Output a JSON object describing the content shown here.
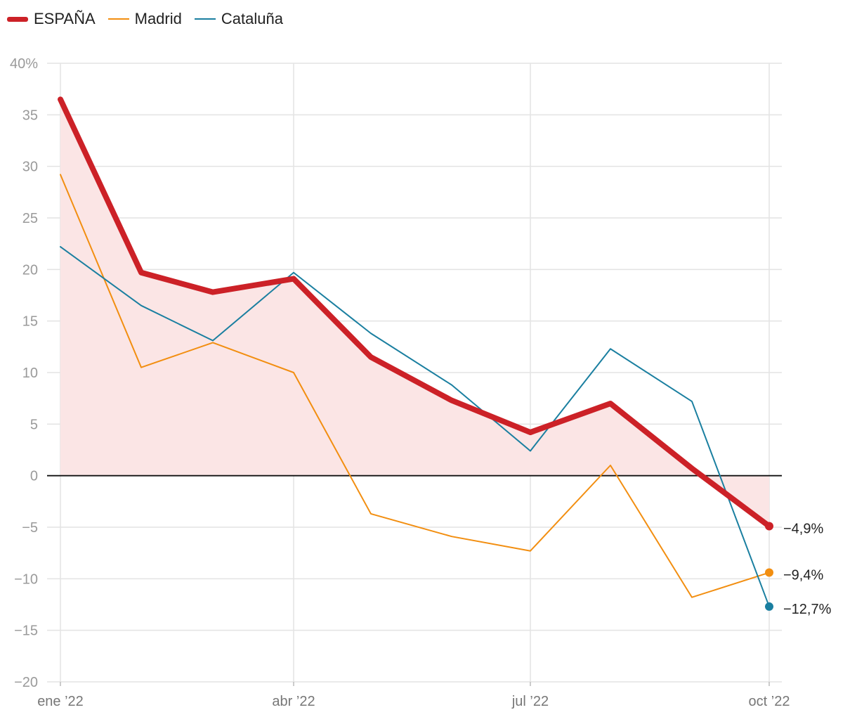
{
  "chart_data": {
    "type": "line",
    "title": "",
    "xlabel": "",
    "ylabel": "",
    "ylim": [
      -20,
      40
    ],
    "yticks": [
      {
        "value": 40,
        "label": "40%"
      },
      {
        "value": 35,
        "label": "35"
      },
      {
        "value": 30,
        "label": "30"
      },
      {
        "value": 25,
        "label": "25"
      },
      {
        "value": 20,
        "label": "20"
      },
      {
        "value": 15,
        "label": "15"
      },
      {
        "value": 10,
        "label": "10"
      },
      {
        "value": 5,
        "label": "5"
      },
      {
        "value": 0,
        "label": "0"
      },
      {
        "value": -5,
        "label": "−5"
      },
      {
        "value": -10,
        "label": "−10"
      },
      {
        "value": -15,
        "label": "−15"
      },
      {
        "value": -20,
        "label": "−20"
      }
    ],
    "x": [
      "2022-01",
      "2022-02",
      "2022-03",
      "2022-04",
      "2022-05",
      "2022-06",
      "2022-07",
      "2022-08",
      "2022-09",
      "2022-10"
    ],
    "xticks": [
      {
        "x": "2022-01",
        "label": "ene ’22"
      },
      {
        "x": "2022-04",
        "label": "abr ’22"
      },
      {
        "x": "2022-07",
        "label": "jul ’22"
      },
      {
        "x": "2022-10",
        "label": "oct ’22"
      }
    ],
    "legend_position": "top-left",
    "grid": true,
    "series": [
      {
        "name": "ESPAÑA",
        "color": "#cc2127",
        "emphasis": "thick-with-area",
        "area_color": "#fbe5e5",
        "values": [
          36.5,
          19.7,
          17.8,
          19.1,
          11.5,
          7.3,
          4.2,
          7.0,
          0.7,
          -4.9
        ],
        "end_label": "−4,9%"
      },
      {
        "name": "Madrid",
        "color": "#f28e10",
        "emphasis": "thin",
        "values": [
          29.2,
          10.5,
          12.9,
          10.0,
          -3.7,
          -5.9,
          -7.3,
          1.0,
          -11.8,
          -9.4
        ],
        "end_label": "−9,4%"
      },
      {
        "name": "Cataluña",
        "color": "#1a7fa0",
        "emphasis": "thin",
        "values": [
          22.2,
          16.5,
          13.1,
          19.7,
          13.8,
          8.8,
          2.4,
          12.3,
          7.2,
          -12.7
        ],
        "end_label": "−12,7%"
      }
    ]
  }
}
